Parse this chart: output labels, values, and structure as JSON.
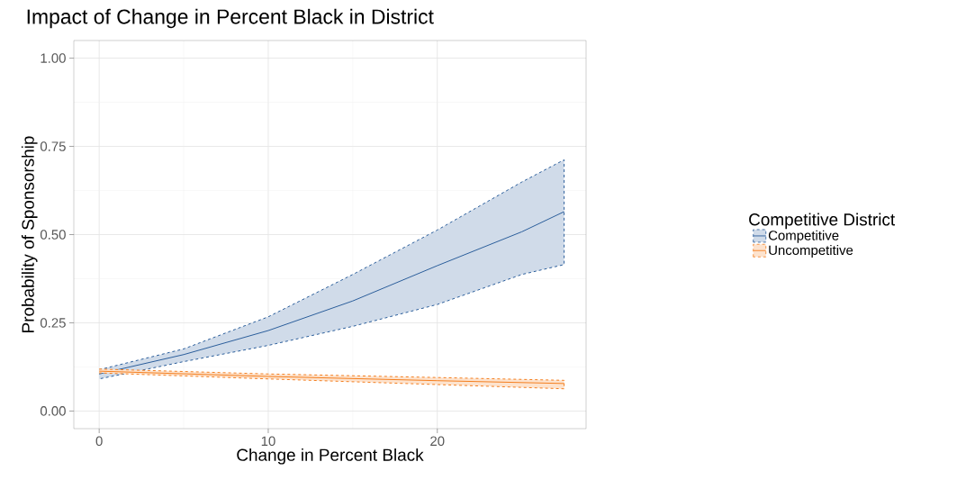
{
  "chart_data": {
    "type": "line",
    "title": "Impact of Change in Percent Black in District",
    "xlabel": "Change in Percent Black",
    "ylabel": "Probability of Sponsorship",
    "legend_title": "Competitive District",
    "xlim": [
      -1.5,
      28.8
    ],
    "ylim": [
      -0.05,
      1.05
    ],
    "xticks": [
      0,
      10,
      20
    ],
    "yticks": [
      {
        "value": 0,
        "label": "0.00"
      },
      {
        "value": 0.25,
        "label": "0.25"
      },
      {
        "value": 0.5,
        "label": "0.50"
      },
      {
        "value": 0.75,
        "label": "0.75"
      },
      {
        "value": 1,
        "label": "1.00"
      }
    ],
    "grid": true,
    "legend": "right",
    "line_style": "solid",
    "marker": "none",
    "series": [
      {
        "name": "Competitive",
        "color": "#2a5d9b",
        "x": [
          0,
          5,
          10,
          15,
          20,
          25,
          27.5
        ],
        "values": [
          0.105,
          0.16,
          0.228,
          0.312,
          0.412,
          0.508,
          0.565
        ],
        "lower": [
          0.091,
          0.14,
          0.186,
          0.24,
          0.302,
          0.387,
          0.415
        ],
        "upper": [
          0.117,
          0.176,
          0.267,
          0.387,
          0.513,
          0.649,
          0.712
        ]
      },
      {
        "name": "Uncompetitive",
        "color": "#f47f20",
        "x": [
          0,
          10,
          20,
          27.5
        ],
        "values": [
          0.113,
          0.098,
          0.086,
          0.078
        ],
        "lower": [
          0.108,
          0.091,
          0.075,
          0.063
        ],
        "upper": [
          0.119,
          0.105,
          0.095,
          0.087
        ]
      }
    ]
  }
}
